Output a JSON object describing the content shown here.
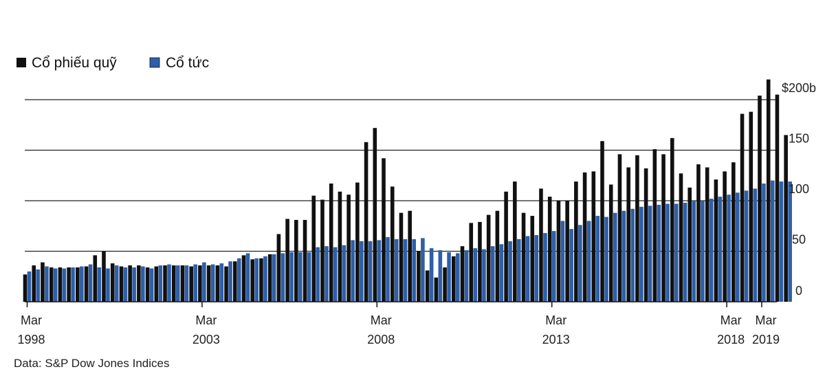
{
  "legend": [
    {
      "label": "Cổ phiếu quỹ",
      "color": "#111111"
    },
    {
      "label": "Cổ tức",
      "color": "#2e5fa8"
    }
  ],
  "source": "Data: S&P Dow Jones Indices",
  "chart_data": {
    "type": "bar",
    "grouping": "side-by-side",
    "frequency": "quarterly",
    "x_start": "1998 Q1",
    "ylim": [
      0,
      200
    ],
    "grid": true,
    "y_axis_position": "right",
    "legend_position": "top-left",
    "y_ticks": [
      {
        "value": 0,
        "label": "0"
      },
      {
        "value": 50,
        "label": "50"
      },
      {
        "value": 100,
        "label": "100"
      },
      {
        "value": 150,
        "label": "150"
      },
      {
        "value": 200,
        "label": "$200b"
      }
    ],
    "x_ticks": [
      {
        "index": 0,
        "line1": "Mar",
        "line2": "1998"
      },
      {
        "index": 20,
        "line1": "Mar",
        "line2": "2003"
      },
      {
        "index": 40,
        "line1": "Mar",
        "line2": "2008"
      },
      {
        "index": 60,
        "line1": "Mar",
        "line2": "2013"
      },
      {
        "index": 80,
        "line1": "Mar",
        "line2": "2018"
      },
      {
        "index": 84,
        "line1": "Mar",
        "line2": "2019"
      }
    ],
    "series": [
      {
        "name": "Cổ phiếu quỹ",
        "color": "#111111",
        "values": [
          27,
          36,
          39,
          34,
          34,
          34,
          34,
          35,
          46,
          50,
          38,
          35,
          36,
          36,
          34,
          35,
          36,
          36,
          36,
          35,
          36,
          36,
          36,
          35,
          40,
          46,
          42,
          43,
          47,
          67,
          82,
          81,
          81,
          105,
          101,
          117,
          109,
          106,
          118,
          158,
          172,
          142,
          114,
          88,
          90,
          50,
          31,
          24,
          34,
          45,
          55,
          78,
          79,
          86,
          90,
          109,
          119,
          88,
          85,
          112,
          104,
          100,
          100,
          119,
          128,
          129,
          159,
          116,
          146,
          133,
          145,
          132,
          151,
          146,
          162,
          127,
          113,
          136,
          133,
          121,
          129,
          138,
          186,
          188,
          204,
          220,
          205,
          165
        ]
      },
      {
        "name": "Cổ tức",
        "color": "#2e5fa8",
        "values": [
          30,
          32,
          35,
          33,
          33,
          34,
          35,
          37,
          34,
          33,
          36,
          34,
          34,
          35,
          33,
          36,
          37,
          36,
          36,
          37,
          39,
          37,
          38,
          40,
          43,
          48,
          43,
          45,
          47,
          48,
          49,
          49,
          49,
          54,
          55,
          54,
          56,
          61,
          60,
          60,
          61,
          64,
          62,
          62,
          62,
          63,
          53,
          51,
          49,
          48,
          51,
          53,
          52,
          55,
          57,
          60,
          62,
          65,
          66,
          68,
          70,
          80,
          72,
          76,
          80,
          85,
          84,
          88,
          90,
          92,
          94,
          95,
          96,
          97,
          97,
          98,
          100,
          100,
          102,
          104,
          106,
          108,
          110,
          112,
          117,
          120,
          119,
          119
        ]
      }
    ]
  }
}
